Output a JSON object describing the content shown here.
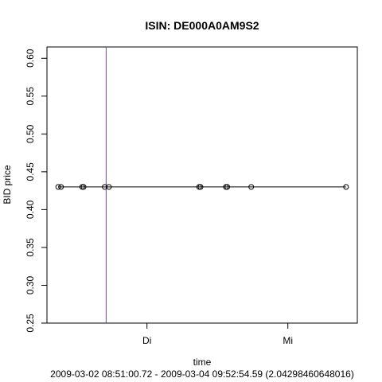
{
  "chart_data": {
    "type": "scatter",
    "title": "ISIN: DE000A0AM9S2",
    "xlabel": "time",
    "subtitle": "2009-03-02 08:51:00.72 - 2009-03-04 09:52:54.59 (2.04298460648016)",
    "ylabel": "BID price",
    "x_range_days": [
      0,
      2.04298460648016
    ],
    "x_ticks": [
      {
        "label": "Di",
        "x": 0.6299
      },
      {
        "label": "Mi",
        "x": 1.6299
      }
    ],
    "ylim": [
      0.25,
      0.615
    ],
    "y_ticks": [
      "0.25",
      "0.30",
      "0.35",
      "0.40",
      "0.45",
      "0.50",
      "0.55",
      "0.60"
    ],
    "series": [
      {
        "x": [
          0.0,
          0.02,
          0.17,
          0.18,
          0.33,
          0.36,
          1.0,
          1.01,
          1.19,
          1.2,
          1.37,
          2.04298460648016
        ],
        "y": [
          0.43,
          0.43,
          0.43,
          0.43,
          0.43,
          0.43,
          0.43,
          0.43,
          0.43,
          0.43,
          0.43,
          0.43
        ]
      }
    ],
    "vline": {
      "x": 0.34,
      "color": "#a020f0"
    },
    "line_color": "#000000",
    "grid": false
  }
}
